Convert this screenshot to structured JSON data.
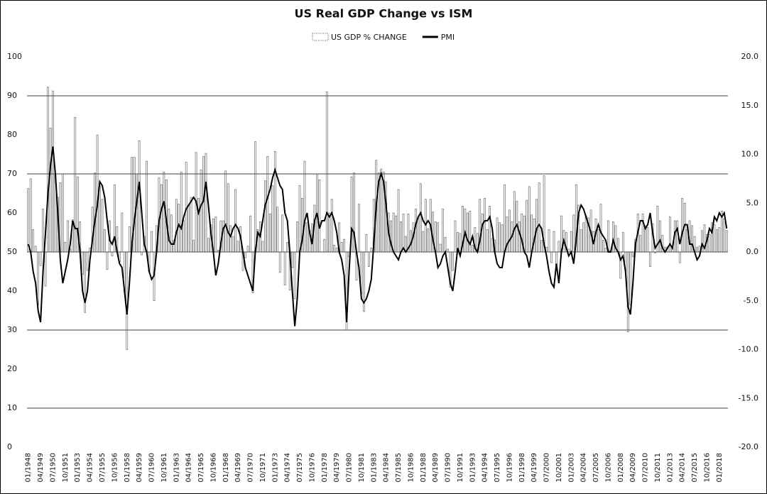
{
  "chart_data": {
    "type": "bar-line",
    "title": "US Real GDP Change vs ISM",
    "legend": "top",
    "grid": true,
    "ylim": [
      0,
      100
    ],
    "yticks": [
      0,
      10,
      20,
      30,
      40,
      50,
      60,
      70,
      80,
      90,
      100
    ],
    "y2lim": [
      -20,
      20
    ],
    "y2ticks": [
      {
        "value": -20,
        "label": "-20.0"
      },
      {
        "value": -15,
        "label": "-15.0"
      },
      {
        "value": -10,
        "label": "-10.0"
      },
      {
        "value": -5,
        "label": "-5.0"
      },
      {
        "value": 0,
        "label": "0.0"
      },
      {
        "value": 5,
        "label": "5.0"
      },
      {
        "value": 10,
        "label": "10.0"
      },
      {
        "value": 15,
        "label": "15.0"
      },
      {
        "value": 20,
        "label": "20.0"
      }
    ],
    "categories": [
      "01/1948",
      null,
      null,
      null,
      null,
      "04/1949",
      null,
      null,
      null,
      null,
      "07/1950",
      null,
      null,
      null,
      null,
      "10/1951",
      null,
      null,
      null,
      null,
      "01/1953",
      null,
      null,
      null,
      null,
      "04/1954",
      null,
      null,
      null,
      null,
      "07/1955",
      null,
      null,
      null,
      null,
      "10/1956",
      null,
      null,
      null,
      null,
      "01/1958",
      null,
      null,
      null,
      null,
      "04/1959",
      null,
      null,
      null,
      null,
      "07/1960",
      null,
      null,
      null,
      null,
      "10/1961",
      null,
      null,
      null,
      null,
      "01/1963",
      null,
      null,
      null,
      null,
      "04/1964",
      null,
      null,
      null,
      null,
      "07/1965",
      null,
      null,
      null,
      null,
      "10/1966",
      null,
      null,
      null,
      null,
      "01/1968",
      null,
      null,
      null,
      null,
      "04/1969",
      null,
      null,
      null,
      null,
      "07/1970",
      null,
      null,
      null,
      null,
      "10/1971",
      null,
      null,
      null,
      null,
      "01/1973",
      null,
      null,
      null,
      null,
      "04/1974",
      null,
      null,
      null,
      null,
      "07/1975",
      null,
      null,
      null,
      null,
      "10/1976",
      null,
      null,
      null,
      null,
      "01/1978",
      null,
      null,
      null,
      null,
      "04/1979",
      null,
      null,
      null,
      null,
      "07/1980",
      null,
      null,
      null,
      null,
      "10/1981",
      null,
      null,
      null,
      null,
      "01/1983",
      null,
      null,
      null,
      null,
      "04/1984",
      null,
      null,
      null,
      null,
      "07/1985",
      null,
      null,
      null,
      null,
      "10/1986",
      null,
      null,
      null,
      null,
      "01/1988",
      null,
      null,
      null,
      null,
      "04/1989",
      null,
      null,
      null,
      null,
      "07/1990",
      null,
      null,
      null,
      null,
      "10/1991",
      null,
      null,
      null,
      null,
      "01/1993",
      null,
      null,
      null,
      null,
      "04/1994",
      null,
      null,
      null,
      null,
      "07/1995",
      null,
      null,
      null,
      null,
      "10/1996",
      null,
      null,
      null,
      null,
      "01/1998",
      null,
      null,
      null,
      null,
      "04/1999",
      null,
      null,
      null,
      null,
      "07/2000",
      null,
      null,
      null,
      null,
      "10/2001",
      null,
      null,
      null,
      null,
      "01/2003",
      null,
      null,
      null,
      null,
      "04/2004",
      null,
      null,
      null,
      null,
      "07/2005",
      null,
      null,
      null,
      null,
      "10/2006",
      null,
      null,
      null,
      null,
      "01/2008",
      null,
      null,
      null,
      null,
      "04/2009",
      null,
      null,
      null,
      null,
      "07/2010",
      null,
      null,
      null,
      null,
      "10/2011",
      null,
      null,
      null,
      null,
      "01/2013",
      null,
      null,
      null,
      null,
      "04/2014",
      null,
      null,
      null,
      null,
      "07/2015",
      null,
      null,
      null,
      null,
      "10/2016",
      null,
      null,
      null,
      null,
      "01/2018",
      null,
      null,
      null
    ],
    "series": [
      {
        "name": "US GDP % CHANGE",
        "color": "#555555",
        "axis": "y2",
        "values": [
          6.5,
          7.5,
          2.3,
          0.6,
          -5.4,
          -1.4,
          4.4,
          -3.5,
          16.9,
          12.7,
          16.5,
          7.9,
          5.6,
          7.1,
          8.0,
          1.0,
          3.2,
          0.3,
          3.3,
          13.8,
          7.7,
          3.1,
          -2.3,
          -6.2,
          -1.9,
          0.4,
          4.6,
          8.1,
          12.0,
          6.8,
          5.4,
          2.3,
          -1.8,
          3.2,
          -0.4,
          6.9,
          2.6,
          -1.0,
          4.0,
          -4.1,
          -10.0,
          2.6,
          9.7,
          9.7,
          8.0,
          11.4,
          -0.3,
          1.6,
          9.3,
          -2.0,
          2.1,
          -5.0,
          2.7,
          7.6,
          6.9,
          8.2,
          7.4,
          4.4,
          3.8,
          1.2,
          5.4,
          4.9,
          8.2,
          3.2,
          9.2,
          4.8,
          5.6,
          1.2,
          10.2,
          5.5,
          8.4,
          9.8,
          10.1,
          1.4,
          2.8,
          3.4,
          3.6,
          0.2,
          3.2,
          3.2,
          8.3,
          7.0,
          2.7,
          1.6,
          6.4,
          1.1,
          2.6,
          -1.9,
          -0.6,
          0.6,
          3.7,
          -4.2,
          11.3,
          2.3,
          3.1,
          1.1,
          7.3,
          9.8,
          3.9,
          6.8,
          10.3,
          4.6,
          -2.1,
          3.8,
          -3.4,
          1.0,
          -3.9,
          -1.6,
          -4.8,
          3.1,
          6.8,
          5.5,
          9.3,
          3.0,
          2.2,
          2.9,
          4.8,
          8.0,
          7.4,
          0.0,
          1.3,
          16.4,
          4.0,
          5.4,
          0.7,
          0.4,
          3.0,
          1.0,
          1.3,
          -8.0,
          -0.5,
          7.7,
          8.1,
          -2.9,
          4.9,
          -4.3,
          -6.1,
          1.8,
          -1.5,
          0.4,
          5.4,
          9.4,
          8.1,
          8.5,
          8.2,
          7.2,
          4.0,
          3.2,
          4.0,
          3.7,
          6.4,
          3.1,
          3.9,
          1.6,
          3.9,
          2.2,
          3.0,
          4.4,
          3.5,
          7.0,
          2.1,
          5.4,
          2.4,
          5.4,
          4.1,
          3.1,
          3.0,
          0.8,
          4.4,
          1.5,
          0.3,
          -3.6,
          -1.9,
          3.2,
          2.0,
          1.9,
          4.7,
          4.4,
          4.0,
          4.2,
          0.7,
          2.5,
          1.9,
          5.4,
          3.9,
          5.5,
          2.3,
          4.7,
          1.4,
          1.2,
          3.5,
          3.0,
          2.8,
          6.9,
          3.6,
          4.3,
          3.1,
          6.2,
          5.2,
          3.1,
          3.9,
          3.7,
          5.3,
          6.7,
          3.8,
          3.4,
          5.4,
          7.1,
          1.2,
          7.8,
          0.5,
          2.3,
          -1.1,
          2.1,
          -1.3,
          1.1,
          3.7,
          2.2,
          2.0,
          0.3,
          2.1,
          3.8,
          6.9,
          4.8,
          2.3,
          3.0,
          3.7,
          3.5,
          4.3,
          2.1,
          3.4,
          2.3,
          4.9,
          1.2,
          0.4,
          3.2,
          0.2,
          3.1,
          2.7,
          1.4,
          -2.7,
          2.0,
          -1.9,
          -8.2,
          -5.4,
          -0.5,
          1.3,
          3.9,
          1.7,
          3.9,
          2.7,
          2.5,
          -1.5,
          2.9,
          -0.1,
          4.7,
          3.2,
          1.7,
          0.5,
          0.5,
          3.6,
          0.5,
          3.2,
          3.2,
          -1.1,
          5.5,
          5.0,
          2.3,
          3.2,
          2.7,
          1.6,
          0.5,
          0.6,
          2.2,
          2.8,
          1.8,
          1.8,
          3.0,
          2.8,
          2.3,
          2.5,
          4.2,
          3.4,
          2.2
        ]
      },
      {
        "name": "PMI",
        "color": "#000000",
        "axis": "y",
        "values": [
          52,
          50,
          45,
          42,
          35,
          32,
          45,
          55,
          65,
          72,
          77,
          70,
          60,
          48,
          42,
          45,
          48,
          52,
          58,
          56,
          56,
          50,
          40,
          37,
          40,
          48,
          53,
          58,
          62,
          68,
          67,
          64,
          58,
          53,
          52,
          54,
          50,
          47,
          46,
          40,
          34,
          42,
          52,
          58,
          63,
          68,
          60,
          52,
          50,
          45,
          43,
          44,
          50,
          58,
          61,
          63,
          58,
          53,
          52,
          52,
          55,
          57,
          56,
          59,
          61,
          62,
          63,
          64,
          63,
          60,
          62,
          63,
          68,
          62,
          55,
          50,
          44,
          47,
          52,
          56,
          57,
          55,
          54,
          56,
          57,
          56,
          54,
          50,
          46,
          44,
          42,
          40,
          50,
          55,
          54,
          58,
          62,
          64,
          66,
          69,
          71,
          69,
          67,
          66,
          60,
          58,
          50,
          40,
          31,
          38,
          50,
          53,
          58,
          60,
          55,
          52,
          58,
          60,
          56,
          58,
          58,
          60,
          59,
          60,
          58,
          55,
          50,
          48,
          44,
          32,
          45,
          56,
          55,
          50,
          46,
          38,
          37,
          38,
          40,
          43,
          52,
          62,
          68,
          70,
          68,
          62,
          55,
          52,
          50,
          49,
          48,
          50,
          51,
          50,
          51,
          52,
          54,
          57,
          59,
          60,
          58,
          57,
          58,
          57,
          53,
          50,
          46,
          47,
          49,
          50,
          46,
          42,
          40,
          45,
          51,
          49,
          52,
          55,
          53,
          52,
          54,
          51,
          50,
          53,
          57,
          58,
          58,
          59,
          56,
          50,
          47,
          46,
          46,
          50,
          52,
          53,
          54,
          56,
          57,
          55,
          53,
          50,
          49,
          46,
          50,
          53,
          56,
          57,
          56,
          52,
          49,
          45,
          42,
          41,
          47,
          42,
          50,
          53,
          51,
          49,
          50,
          47,
          53,
          60,
          62,
          61,
          59,
          57,
          55,
          52,
          55,
          57,
          55,
          54,
          53,
          50,
          50,
          53,
          51,
          50,
          48,
          49,
          45,
          36,
          34,
          42,
          52,
          55,
          58,
          58,
          56,
          57,
          60,
          55,
          51,
          52,
          53,
          51,
          50,
          51,
          52,
          51,
          55,
          56,
          52,
          55,
          57,
          57,
          52,
          52,
          50,
          48,
          49,
          52,
          51,
          53,
          56,
          55,
          59,
          58,
          60,
          59,
          60,
          56
        ]
      }
    ]
  }
}
